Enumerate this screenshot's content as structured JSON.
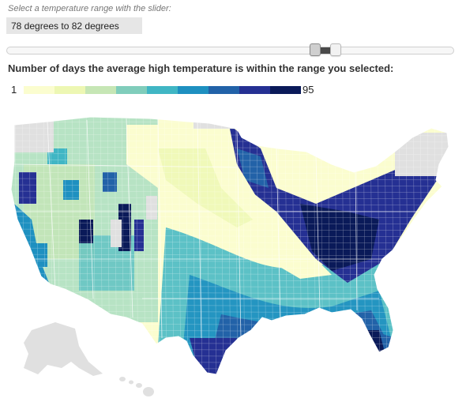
{
  "instruction": "Select a temperature range with the slider:",
  "range_label": "78 degrees to 82 degrees",
  "slider": {
    "min_fraction": 0.69,
    "max_fraction": 0.737
  },
  "heading": "Number of days the average high temperature is within the range you selected:",
  "legend": {
    "min": "1",
    "max": "95",
    "colors": [
      "#fbfdcf",
      "#edf7b3",
      "#c6e6b5",
      "#80cdbb",
      "#40b6c4",
      "#1e90c0",
      "#2262a8",
      "#253093",
      "#0a1a59"
    ]
  },
  "map": {
    "no_data_color": "#e0e0e0",
    "border_color": "#ffffff"
  }
}
